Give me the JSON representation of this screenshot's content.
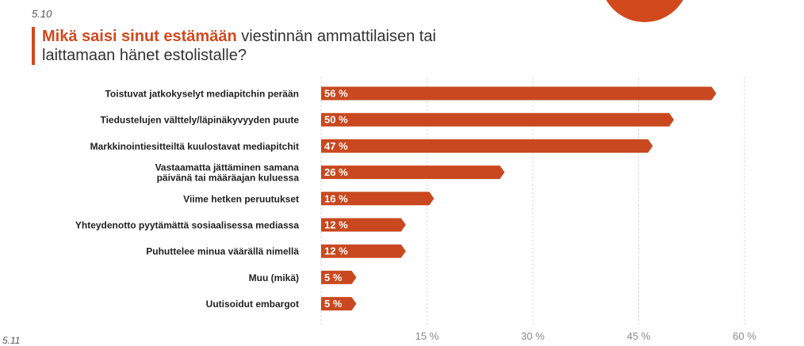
{
  "section_number": "5.10",
  "next_section_number": "5.11",
  "title": {
    "emphasis": "Mikä saisi sinut estämään",
    "rest": "viestinnän ammattilaisen tai laittamaan hänet estolistalle?"
  },
  "colors": {
    "accent": "#d2491e",
    "bar": "#c9481f",
    "grid": "#cfcfcf",
    "axis_text": "#888888",
    "label_text": "#222222"
  },
  "chart_data": {
    "type": "bar",
    "orientation": "horizontal",
    "categories": [
      "Toistuvat jatkokyselyt mediapitchin perään",
      "Tiedustelujen välttely/läpinäkyvyyden puute",
      "Markkinointiesitteiltä kuulostavat mediapitchit",
      "Vastaamatta jättäminen samana päivänä tai määräajan kuluessa",
      "Viime hetken peruutukset",
      "Yhteydenotto pyytämättä sosiaalisessa mediassa",
      "Puhuttelee minua väärällä nimellä",
      "Muu (mikä)",
      "Uutisoidut embargot"
    ],
    "category_lines": [
      [
        "Toistuvat jatkokyselyt mediapitchin perään"
      ],
      [
        "Tiedustelujen välttely/läpinäkyvyyden puute"
      ],
      [
        "Markkinointiesitteiltä kuulostavat mediapitchit"
      ],
      [
        "Vastaamatta jättäminen samana",
        "päivänä tai määräajan kuluessa"
      ],
      [
        "Viime hetken peruutukset"
      ],
      [
        "Yhteydenotto pyytämättä sosiaalisessa mediassa"
      ],
      [
        "Puhuttelee minua väärällä nimellä"
      ],
      [
        "Muu (mikä)"
      ],
      [
        "Uutisoidut embargot"
      ]
    ],
    "values": [
      56,
      50,
      47,
      26,
      16,
      12,
      12,
      5,
      5
    ],
    "value_labels": [
      "56 %",
      "50 %",
      "47 %",
      "26 %",
      "16 %",
      "12 %",
      "12 %",
      "5 %",
      "5 %"
    ],
    "x_ticks": [
      0,
      15,
      30,
      45,
      60
    ],
    "x_tick_labels": [
      "",
      "15 %",
      "30 %",
      "45 %",
      "60 %"
    ],
    "xlim": [
      0,
      60
    ],
    "grid": true,
    "gridline_style": "dashed"
  }
}
